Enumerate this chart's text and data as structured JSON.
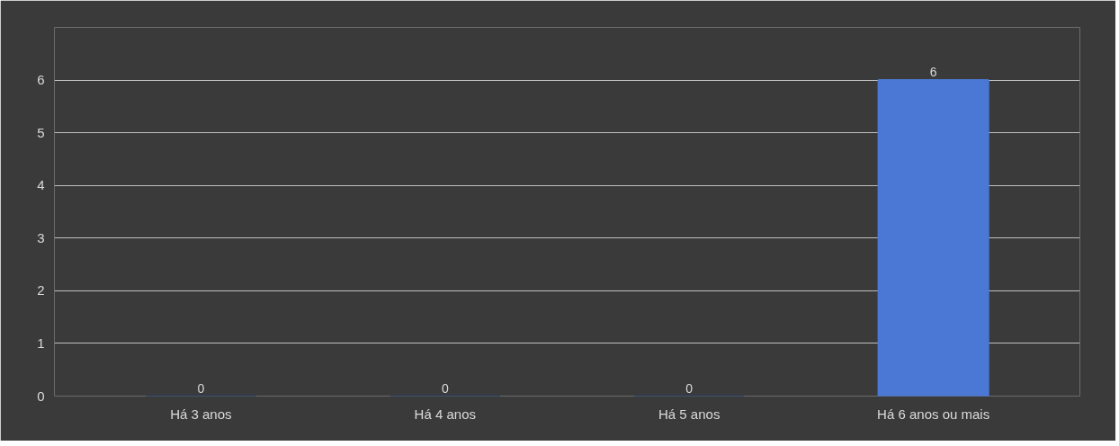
{
  "chart_data": {
    "type": "bar",
    "categories": [
      "Há 3 anos",
      "Há 4 anos",
      "Há 5 anos",
      "Há 6 anos ou mais"
    ],
    "values": [
      0,
      0,
      0,
      6
    ],
    "colors": [
      "#1f3864",
      "#1f3864",
      "#1f3864",
      "#4a78d4"
    ],
    "ylim": [
      0,
      7
    ],
    "yticks": [
      0,
      1,
      2,
      3,
      4,
      5,
      6,
      {
        "value": 7,
        "label": null
      }
    ],
    "grid": "y",
    "data_labels": true
  }
}
